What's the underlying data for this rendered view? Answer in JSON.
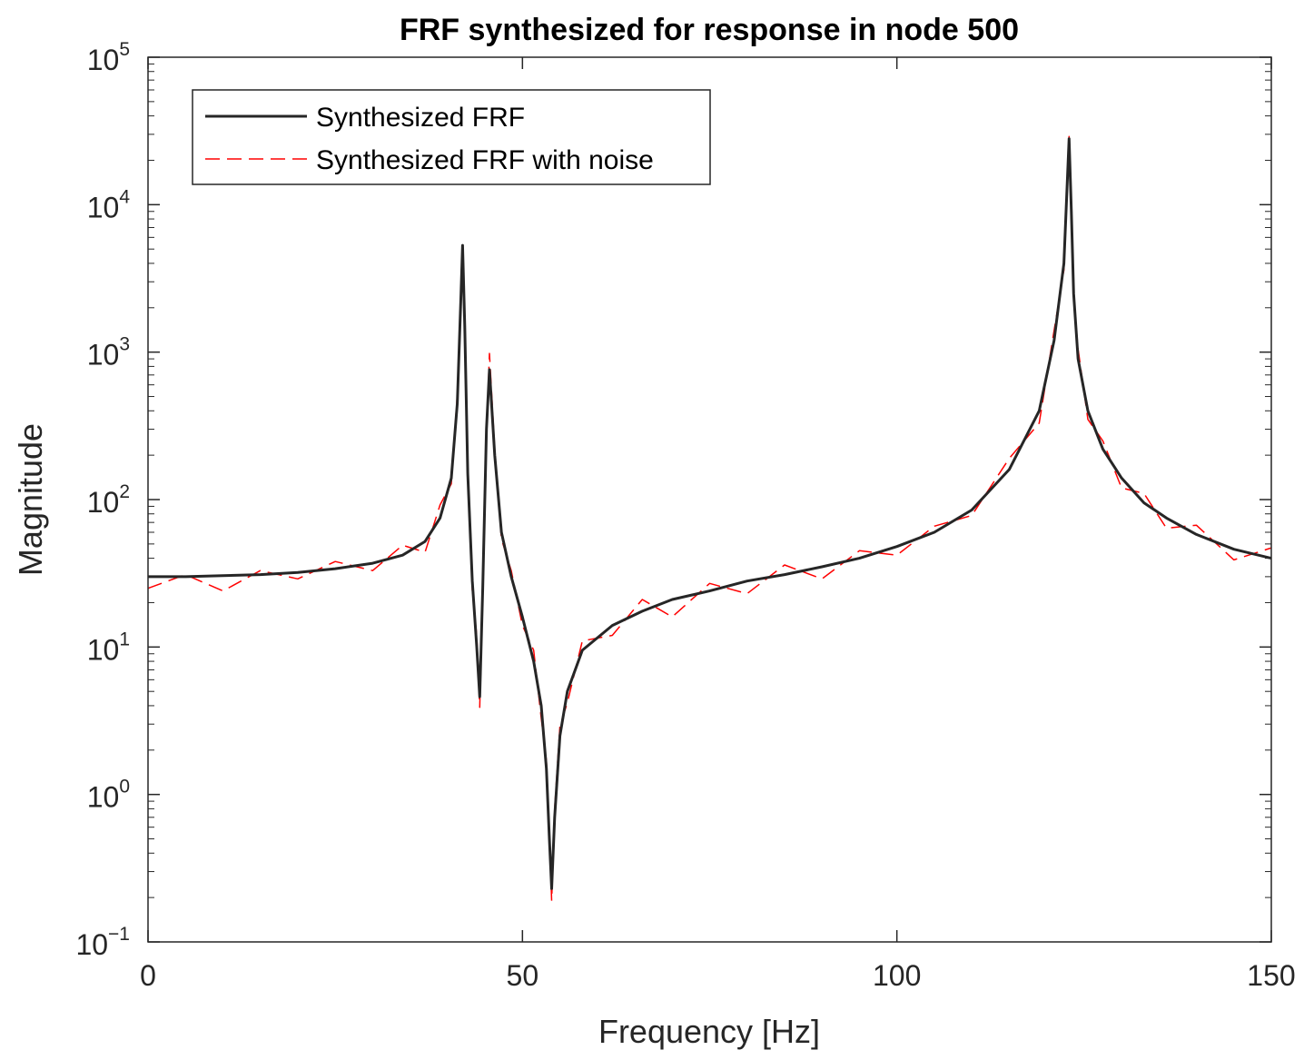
{
  "chart_data": {
    "type": "line",
    "title": "FRF synthesized for response in node 500",
    "xlabel": "Frequency [Hz]",
    "ylabel": "Magnitude",
    "xlim": [
      0,
      150
    ],
    "ylim": [
      0.1,
      100000
    ],
    "yscale": "log",
    "grid": false,
    "legend_position": "top-left",
    "x_ticks": [
      {
        "value": 0,
        "label": "0"
      },
      {
        "value": 50,
        "label": "50"
      },
      {
        "value": 100,
        "label": "100"
      },
      {
        "value": 150,
        "label": "150"
      }
    ],
    "y_ticks": [
      {
        "value": 0.1,
        "base": "10",
        "exp": "−1"
      },
      {
        "value": 1,
        "base": "10",
        "exp": "0"
      },
      {
        "value": 10,
        "base": "10",
        "exp": "1"
      },
      {
        "value": 100,
        "base": "10",
        "exp": "2"
      },
      {
        "value": 1000,
        "base": "10",
        "exp": "3"
      },
      {
        "value": 10000,
        "base": "10",
        "exp": "4"
      },
      {
        "value": 100000,
        "base": "10",
        "exp": "5"
      }
    ],
    "series": [
      {
        "name": "Synthesized FRF",
        "color": "#262626",
        "style": "solid",
        "x": [
          0,
          5,
          10,
          15,
          20,
          25,
          30,
          34,
          37,
          39,
          40.5,
          41.3,
          41.8,
          42.0,
          42.3,
          42.7,
          43.3,
          43.9,
          44.3,
          44.7,
          45.2,
          45.6,
          46.3,
          47.2,
          48.5,
          50,
          51.5,
          52.5,
          53.2,
          53.6,
          53.9,
          54.3,
          55,
          56,
          58,
          62,
          66,
          70,
          75,
          80,
          85,
          90,
          95,
          100,
          105,
          110,
          115,
          119,
          121,
          122.3,
          123.0,
          123.3,
          123.6,
          124.2,
          125.5,
          127.5,
          130,
          133,
          136,
          140,
          145,
          150
        ],
        "values": [
          30,
          30,
          30.5,
          31,
          32,
          34,
          37,
          42,
          52,
          75,
          140,
          450,
          2500,
          5300,
          1500,
          150,
          28,
          10,
          4.6,
          25,
          300,
          760,
          200,
          60,
          30,
          16,
          8,
          4,
          1.5,
          0.5,
          0.23,
          0.7,
          2.5,
          5,
          9.5,
          14,
          17.5,
          21,
          24,
          28,
          31,
          35,
          40,
          48,
          60,
          85,
          160,
          400,
          1200,
          4000,
          28000,
          9000,
          2500,
          900,
          400,
          220,
          140,
          95,
          75,
          58,
          46,
          40
        ]
      },
      {
        "name": "Synthesized FRF with noise",
        "color": "#ff0000",
        "style": "dashed",
        "x": [
          0,
          5,
          10,
          15,
          20,
          25,
          30,
          34,
          37,
          39,
          40.5,
          41.3,
          41.8,
          42.0,
          42.3,
          42.7,
          43.3,
          43.9,
          44.3,
          44.7,
          45.2,
          45.6,
          46.3,
          47.2,
          48.5,
          50,
          51.5,
          52.5,
          53.2,
          53.6,
          53.9,
          54.3,
          55,
          56,
          58,
          62,
          66,
          70,
          75,
          80,
          85,
          90,
          95,
          100,
          105,
          110,
          115,
          119,
          121,
          122.3,
          123.0,
          123.3,
          123.6,
          124.2,
          125.5,
          127.5,
          130,
          133,
          136,
          140,
          145,
          150
        ],
        "values": [
          25,
          31,
          24,
          33,
          29,
          38,
          33,
          49,
          44,
          92,
          128,
          520,
          2300,
          4900,
          1300,
          170,
          24,
          12,
          3.9,
          28,
          270,
          980,
          220,
          54,
          33,
          14,
          9.5,
          3.3,
          1.7,
          0.55,
          0.19,
          0.8,
          2.9,
          4.2,
          11,
          12,
          21,
          16,
          27,
          23,
          36,
          29,
          45,
          42,
          66,
          78,
          190,
          330,
          1400,
          3600,
          29000,
          8500,
          2300,
          1050,
          350,
          250,
          120,
          110,
          64,
          67,
          39,
          47
        ]
      }
    ]
  }
}
